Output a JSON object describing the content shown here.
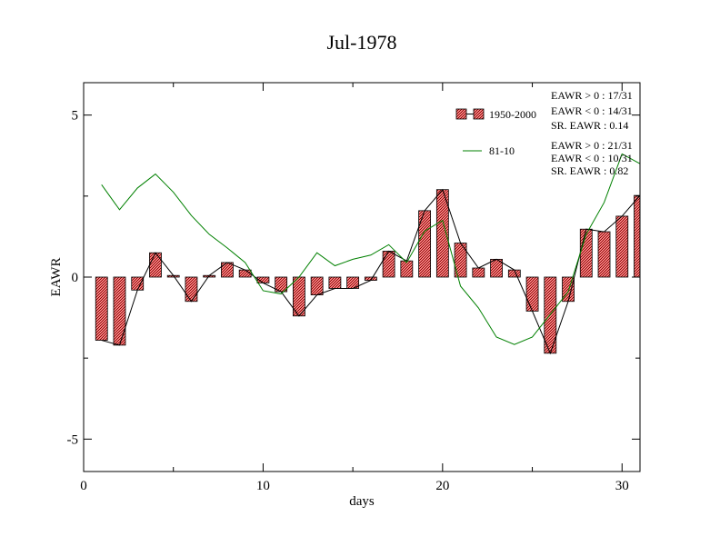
{
  "chart_data": {
    "type": "bar",
    "title": "Jul-1978",
    "xlabel": "days",
    "ylabel": "EAWR",
    "xlim": [
      0,
      31
    ],
    "ylim": [
      -6,
      6
    ],
    "x_ticks": [
      0,
      10,
      20,
      30
    ],
    "y_ticks": [
      -5,
      0,
      5
    ],
    "grid": false,
    "colors": {
      "bar_fill": "#f08080",
      "bar_hatch": "#8b0000",
      "bar_outline": "#000000",
      "line1": "#000000",
      "line2": "#008000"
    },
    "series": [
      {
        "name": "1950-2000",
        "kind": "bar+line",
        "x": [
          1,
          2,
          3,
          4,
          5,
          6,
          7,
          8,
          9,
          10,
          11,
          12,
          13,
          14,
          15,
          16,
          17,
          18,
          19,
          20,
          21,
          22,
          23,
          24,
          25,
          26,
          27,
          28,
          29,
          30,
          31
        ],
        "values": [
          -1.95,
          -2.1,
          -0.4,
          0.75,
          0.05,
          -0.75,
          0.05,
          0.45,
          0.22,
          -0.18,
          -0.45,
          -1.2,
          -0.55,
          -0.35,
          -0.35,
          -0.1,
          0.8,
          0.5,
          2.05,
          2.7,
          1.05,
          0.28,
          0.55,
          0.22,
          -1.05,
          -2.35,
          -0.75,
          1.48,
          1.4,
          1.88,
          2.52
        ]
      },
      {
        "name": "81-10",
        "kind": "line",
        "x": [
          1,
          2,
          3,
          4,
          5,
          6,
          7,
          8,
          9,
          10,
          11,
          12,
          13,
          14,
          15,
          16,
          17,
          18,
          19,
          20,
          21,
          22,
          23,
          24,
          25,
          26,
          27,
          28,
          29,
          30,
          31
        ],
        "values": [
          2.85,
          2.08,
          2.75,
          3.18,
          2.62,
          1.9,
          1.32,
          0.9,
          0.45,
          -0.42,
          -0.52,
          0.0,
          0.75,
          0.35,
          0.55,
          0.68,
          1.0,
          0.45,
          1.42,
          1.75,
          -0.28,
          -0.95,
          -1.85,
          -2.08,
          -1.85,
          -1.15,
          -0.45,
          1.32,
          2.3,
          3.8,
          3.5
        ]
      }
    ],
    "legend": [
      {
        "label": "1950-2000",
        "kind": "bar"
      },
      {
        "label": "81-10",
        "kind": "line"
      }
    ],
    "stats": [
      [
        "EAWR > 0 : 17/31",
        "EAWR < 0 : 14/31",
        "SR. EAWR :  0.14"
      ],
      [
        "EAWR > 0 : 21/31",
        "EAWR < 0 : 10/31",
        "SR. EAWR : 0.82"
      ]
    ]
  }
}
